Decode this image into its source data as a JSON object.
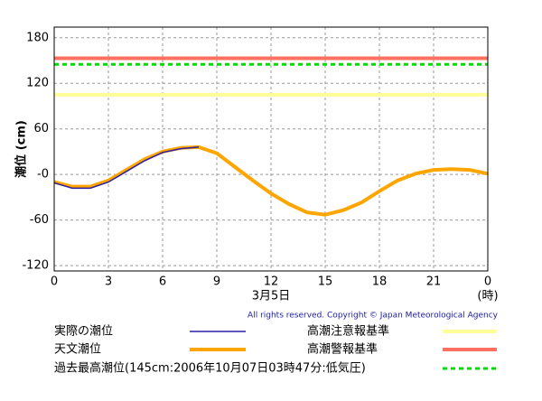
{
  "chart_data": {
    "type": "line",
    "x_label": "3月5日",
    "x_unit_label": "(時)",
    "y_label": "潮位 (cm)",
    "copyright": "All rights reserved. Copyright © Japan Meteorological Agency",
    "xlim": [
      0,
      24
    ],
    "xticks": [
      0,
      3,
      6,
      9,
      12,
      15,
      18,
      21,
      {
        "value": 24,
        "label": "0"
      }
    ],
    "ylim": [
      -127,
      194
    ],
    "yticks": [
      -120,
      -60,
      {
        "value": 0,
        "label": "-0"
      },
      60,
      120,
      180
    ],
    "grid": true,
    "series": [
      {
        "name": "実際の潮位",
        "color": "#2b1fa8",
        "x": [
          0,
          1,
          2,
          3,
          4,
          5,
          6,
          7,
          8
        ],
        "values": [
          -11,
          -18,
          -18,
          -10,
          4,
          18,
          29,
          34,
          36
        ]
      },
      {
        "name": "天文潮位",
        "color": "#ffa500",
        "x": [
          0,
          1,
          2,
          3,
          4,
          5,
          6,
          7,
          8,
          9,
          10,
          11,
          12,
          13,
          14,
          15,
          16,
          17,
          18,
          19,
          20,
          21,
          22,
          23,
          24
        ],
        "values": [
          -10,
          -16,
          -16,
          -8,
          6,
          20,
          30,
          35,
          36,
          28,
          10,
          -8,
          -25,
          -39,
          -50,
          -53,
          -47,
          -37,
          -22,
          -8,
          1,
          6,
          7,
          6,
          1
        ]
      }
    ],
    "reference_lines": [
      {
        "name": "高潮注意報基準",
        "value": 105,
        "color": "#ffff99",
        "style": "solid"
      },
      {
        "name": "高潮警報基準",
        "value": 153,
        "color": "#ff7060",
        "style": "solid"
      },
      {
        "name": "過去最高潮位(145cm:2006年10月07日03時47分:低気圧)",
        "value": 145,
        "color": "#00dd00",
        "style": "dashed"
      }
    ]
  }
}
